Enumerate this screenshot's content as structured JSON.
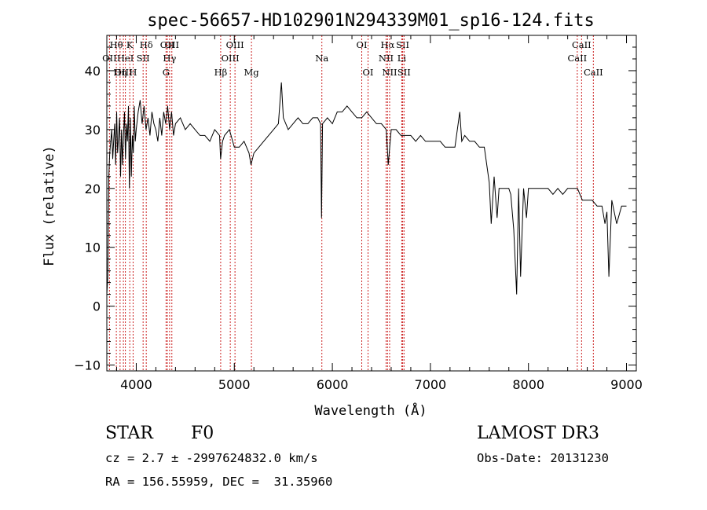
{
  "chart_data": {
    "type": "line",
    "title": "spec-56657-HD102901N294339M01_sp16-124.fits",
    "xlabel": "Wavelength (Å)",
    "ylabel": "Flux (relative)",
    "xlim": [
      3700,
      9100
    ],
    "ylim": [
      -11,
      46
    ],
    "xticks": [
      4000,
      5000,
      6000,
      7000,
      8000,
      9000
    ],
    "yticks": [
      -10,
      0,
      10,
      20,
      30,
      40
    ],
    "grid": false,
    "line_color": "#000000",
    "marker_color": "#cc2222",
    "series": [
      {
        "name": "flux",
        "x": [
          3700,
          3710,
          3720,
          3730,
          3740,
          3750,
          3760,
          3770,
          3780,
          3790,
          3800,
          3810,
          3820,
          3830,
          3840,
          3850,
          3860,
          3870,
          3880,
          3890,
          3900,
          3910,
          3920,
          3930,
          3940,
          3950,
          3960,
          3970,
          3980,
          3990,
          4000,
          4020,
          4040,
          4060,
          4080,
          4100,
          4120,
          4140,
          4160,
          4180,
          4200,
          4220,
          4240,
          4260,
          4280,
          4300,
          4320,
          4340,
          4360,
          4380,
          4400,
          4450,
          4500,
          4550,
          4600,
          4650,
          4700,
          4750,
          4800,
          4850,
          4860,
          4880,
          4900,
          4950,
          5000,
          5050,
          5100,
          5150,
          5170,
          5200,
          5250,
          5300,
          5350,
          5400,
          5450,
          5480,
          5500,
          5550,
          5600,
          5650,
          5700,
          5750,
          5800,
          5850,
          5880,
          5890,
          5900,
          5950,
          6000,
          6050,
          6100,
          6150,
          6200,
          6250,
          6300,
          6350,
          6400,
          6450,
          6500,
          6550,
          6560,
          6570,
          6600,
          6650,
          6700,
          6750,
          6800,
          6850,
          6900,
          6950,
          7000,
          7050,
          7100,
          7150,
          7200,
          7250,
          7300,
          7320,
          7350,
          7400,
          7450,
          7500,
          7550,
          7600,
          7620,
          7650,
          7680,
          7700,
          7750,
          7800,
          7820,
          7850,
          7880,
          7900,
          7920,
          7950,
          7980,
          8000,
          8050,
          8100,
          8150,
          8200,
          8250,
          8300,
          8350,
          8400,
          8450,
          8500,
          8550,
          8600,
          8650,
          8700,
          8750,
          8780,
          8800,
          8820,
          8850,
          8900,
          8950,
          9000
        ],
        "y": [
          2,
          5,
          22,
          26,
          28,
          30,
          25,
          28,
          31,
          24,
          33,
          26,
          29,
          32,
          22,
          30,
          24,
          29,
          33,
          25,
          31,
          28,
          34,
          20,
          32,
          22,
          29,
          26,
          34,
          28,
          30,
          33,
          35,
          31,
          34,
          30,
          32,
          29,
          33,
          31,
          30,
          28,
          32,
          29,
          33,
          31,
          34,
          30,
          33,
          29,
          31,
          32,
          30,
          31,
          30,
          29,
          29,
          28,
          30,
          29,
          25,
          28,
          29,
          30,
          27,
          27,
          28,
          26,
          24,
          26,
          27,
          28,
          29,
          30,
          31,
          38,
          32,
          30,
          31,
          32,
          31,
          31,
          32,
          32,
          31,
          15,
          31,
          32,
          31,
          33,
          33,
          34,
          33,
          32,
          32,
          33,
          32,
          31,
          31,
          30,
          27,
          24,
          30,
          30,
          29,
          29,
          29,
          28,
          29,
          28,
          28,
          28,
          28,
          27,
          27,
          27,
          33,
          28,
          29,
          28,
          28,
          27,
          27,
          21,
          14,
          22,
          15,
          20,
          20,
          20,
          19,
          13,
          2,
          20,
          5,
          20,
          15,
          20,
          20,
          20,
          20,
          20,
          19,
          20,
          19,
          20,
          20,
          20,
          18,
          18,
          18,
          17,
          17,
          14,
          16,
          5,
          18,
          14,
          17,
          17
        ]
      }
    ],
    "line_markers": [
      {
        "label": "Hθ",
        "wavelength": 3797,
        "row": 1
      },
      {
        "label": "OII",
        "wavelength": 3727,
        "row": 2
      },
      {
        "label": "OIII",
        "wavelength": 3869,
        "row": 3
      },
      {
        "label": "HeI",
        "wavelength": 3889,
        "row": 2
      },
      {
        "label": "Hη",
        "wavelength": 3835,
        "row": 3
      },
      {
        "label": "K",
        "wavelength": 3934,
        "row": 1
      },
      {
        "label": "H",
        "wavelength": 3968,
        "row": 3
      },
      {
        "label": "SII",
        "wavelength": 4070,
        "row": 2
      },
      {
        "label": "Hδ",
        "wavelength": 4102,
        "row": 1
      },
      {
        "label": "OII",
        "wavelength": 4317,
        "row": 1
      },
      {
        "label": "OII",
        "wavelength": 4363,
        "row": 1
      },
      {
        "label": "Hγ",
        "wavelength": 4340,
        "row": 2
      },
      {
        "label": "G",
        "wavelength": 4304,
        "row": 3
      },
      {
        "label": "Hβ",
        "wavelength": 4861,
        "row": 3
      },
      {
        "label": "OIII",
        "wavelength": 4959,
        "row": 2
      },
      {
        "label": "OIII",
        "wavelength": 5007,
        "row": 1
      },
      {
        "label": "Mg",
        "wavelength": 5175,
        "row": 3
      },
      {
        "label": "Na",
        "wavelength": 5893,
        "row": 2
      },
      {
        "label": "OI",
        "wavelength": 6300,
        "row": 1
      },
      {
        "label": "OI",
        "wavelength": 6364,
        "row": 3
      },
      {
        "label": "Hα",
        "wavelength": 6563,
        "row": 1
      },
      {
        "label": "NII",
        "wavelength": 6548,
        "row": 2
      },
      {
        "label": "NII",
        "wavelength": 6584,
        "row": 3
      },
      {
        "label": "SII",
        "wavelength": 6717,
        "row": 1
      },
      {
        "label": "Li",
        "wavelength": 6708,
        "row": 2
      },
      {
        "label": "SII",
        "wavelength": 6731,
        "row": 3
      },
      {
        "label": "CaII",
        "wavelength": 8542,
        "row": 1
      },
      {
        "label": "CaII",
        "wavelength": 8498,
        "row": 2
      },
      {
        "label": "CaII",
        "wavelength": 8662,
        "row": 3
      }
    ]
  },
  "info": {
    "class": "STAR",
    "subclass": "F0",
    "survey": "LAMOST DR3",
    "cz": "cz = 2.7 ± -2997624832.0 km/s",
    "obs_date": "Obs-Date: 20131230",
    "radec": "RA = 156.55959, DEC =  31.35960"
  }
}
